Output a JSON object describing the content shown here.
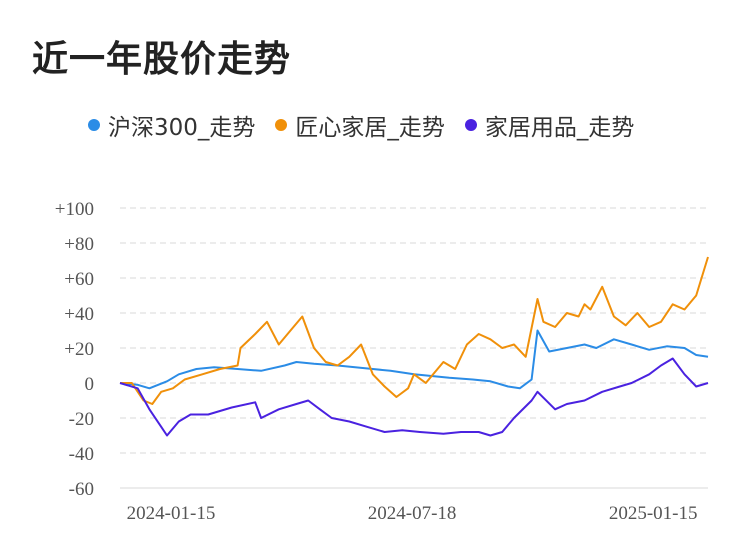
{
  "title": "近一年股价走势",
  "chart_data": {
    "type": "line",
    "ylim": [
      -60,
      100
    ],
    "yticks": [
      100,
      80,
      60,
      40,
      20,
      0,
      -20,
      -40,
      -60
    ],
    "ytick_labels": [
      "+100",
      "+80",
      "+60",
      "+40",
      "+20",
      "0",
      "-20",
      "-40",
      "-60"
    ],
    "xtick_labels": [
      "2024-01-15",
      "2024-07-18",
      "2025-01-15"
    ],
    "xtick_positions": [
      0,
      0.41,
      0.82
    ],
    "grid": true,
    "legend_placement": "top",
    "series": [
      {
        "name": "沪深300_走势",
        "color": "#2b8ce6",
        "x": [
          0,
          0.03,
          0.05,
          0.08,
          0.1,
          0.13,
          0.16,
          0.2,
          0.24,
          0.28,
          0.3,
          0.33,
          0.37,
          0.4,
          0.43,
          0.46,
          0.5,
          0.53,
          0.56,
          0.6,
          0.63,
          0.66,
          0.68,
          0.7,
          0.71,
          0.73,
          0.76,
          0.79,
          0.81,
          0.84,
          0.87,
          0.9,
          0.93,
          0.96,
          0.98,
          1.0
        ],
        "values": [
          0,
          -1,
          -3,
          1,
          5,
          8,
          9,
          8,
          7,
          10,
          12,
          11,
          10,
          9,
          8,
          7,
          5,
          4,
          3,
          2,
          1,
          -2,
          -3,
          2,
          30,
          18,
          20,
          22,
          20,
          25,
          22,
          19,
          21,
          20,
          16,
          15
        ]
      },
      {
        "name": "匠心家居_走势",
        "color": "#f0900a",
        "x": [
          0,
          0.02,
          0.04,
          0.055,
          0.07,
          0.09,
          0.11,
          0.14,
          0.17,
          0.2,
          0.205,
          0.23,
          0.25,
          0.27,
          0.29,
          0.31,
          0.33,
          0.35,
          0.37,
          0.39,
          0.41,
          0.43,
          0.45,
          0.47,
          0.49,
          0.5,
          0.52,
          0.55,
          0.57,
          0.59,
          0.61,
          0.63,
          0.65,
          0.67,
          0.69,
          0.71,
          0.72,
          0.74,
          0.76,
          0.78,
          0.79,
          0.8,
          0.82,
          0.84,
          0.86,
          0.88,
          0.9,
          0.92,
          0.94,
          0.96,
          0.98,
          1.0
        ],
        "values": [
          0,
          0,
          -10,
          -12,
          -5,
          -3,
          2,
          5,
          8,
          10,
          20,
          28,
          35,
          22,
          30,
          38,
          20,
          12,
          10,
          15,
          22,
          5,
          -2,
          -8,
          -3,
          5,
          0,
          12,
          8,
          22,
          28,
          25,
          20,
          22,
          15,
          48,
          35,
          32,
          40,
          38,
          45,
          42,
          55,
          38,
          33,
          40,
          32,
          35,
          45,
          42,
          50,
          72
        ]
      },
      {
        "name": "家居用品_走势",
        "color": "#4a22e0",
        "x": [
          0,
          0.03,
          0.05,
          0.07,
          0.08,
          0.1,
          0.12,
          0.15,
          0.19,
          0.23,
          0.24,
          0.27,
          0.3,
          0.32,
          0.34,
          0.36,
          0.39,
          0.42,
          0.45,
          0.48,
          0.51,
          0.55,
          0.58,
          0.61,
          0.63,
          0.65,
          0.67,
          0.7,
          0.71,
          0.74,
          0.76,
          0.79,
          0.82,
          0.85,
          0.87,
          0.9,
          0.92,
          0.94,
          0.96,
          0.98,
          1.0
        ],
        "values": [
          0,
          -3,
          -15,
          -25,
          -30,
          -22,
          -18,
          -18,
          -14,
          -11,
          -20,
          -15,
          -12,
          -10,
          -15,
          -20,
          -22,
          -25,
          -28,
          -27,
          -28,
          -29,
          -28,
          -28,
          -30,
          -28,
          -20,
          -10,
          -5,
          -15,
          -12,
          -10,
          -5,
          -2,
          0,
          5,
          10,
          14,
          5,
          -2,
          0
        ]
      }
    ]
  }
}
